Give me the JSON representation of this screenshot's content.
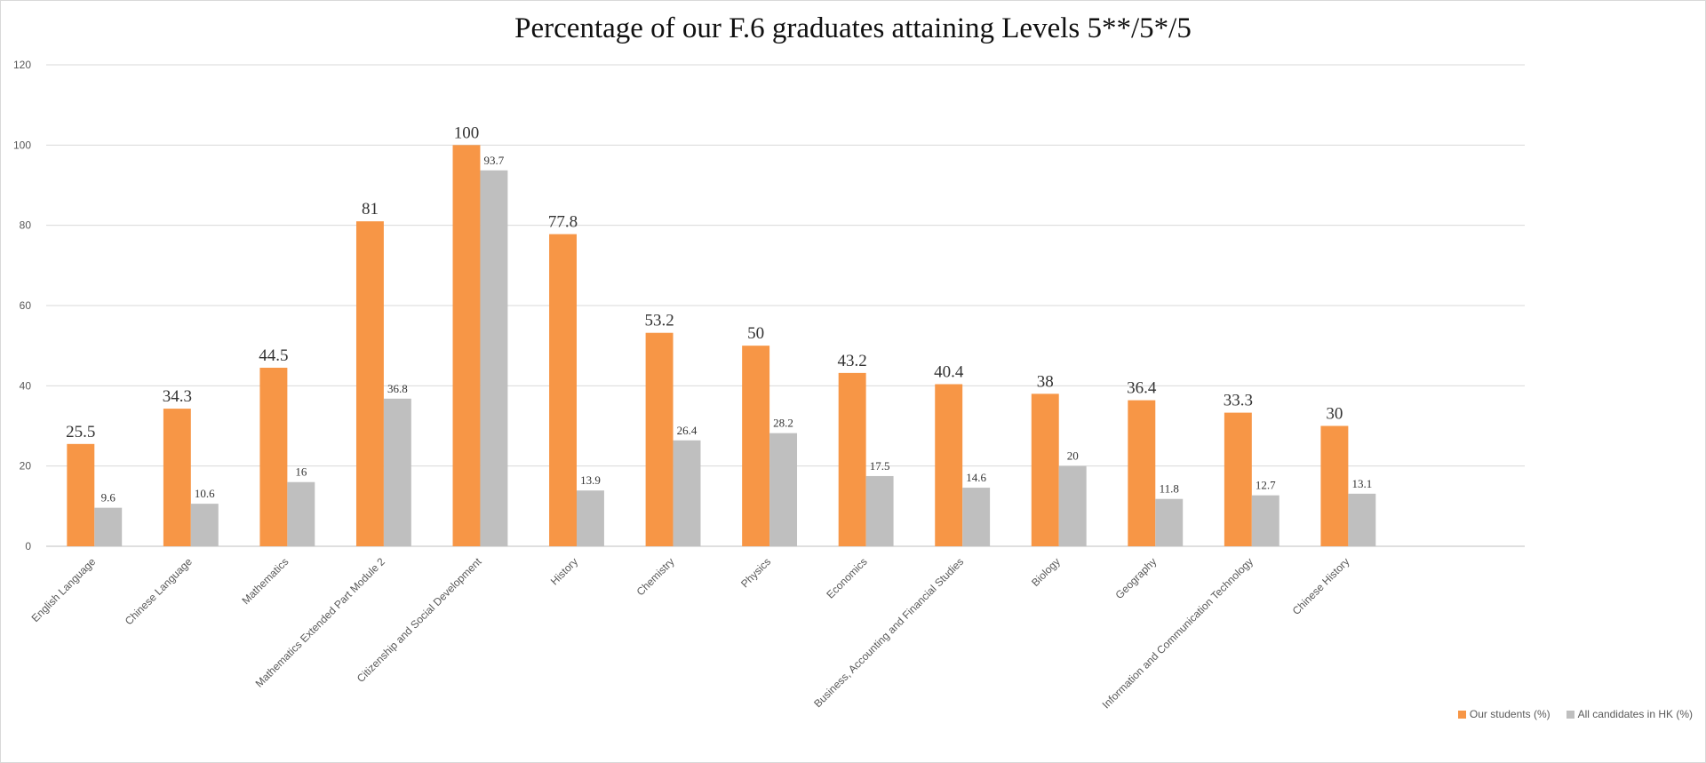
{
  "chart_data": {
    "type": "bar",
    "title": "Percentage of our F.6 graduates attaining Levels 5**/5*/5",
    "xlabel": "",
    "ylabel": "",
    "ylim": [
      0,
      120
    ],
    "yticks": [
      0,
      20,
      40,
      60,
      80,
      100,
      120
    ],
    "grid": true,
    "legend_position": "bottom-right",
    "categories": [
      "English Language",
      "Chinese Language",
      "Mathematics",
      "Mathematics Extended Part Module 2",
      "Citizenship and Social Development",
      "History",
      "Chemistry",
      "Physics",
      "Economics",
      "Business, Accounting and Financial Studies",
      "Biology",
      "Geography",
      "Information and Communication Technology",
      "Chinese History"
    ],
    "series": [
      {
        "name": "Our students (%)",
        "color": "#f79646",
        "values": [
          25.5,
          34.3,
          44.5,
          81,
          100,
          77.8,
          53.2,
          50,
          43.2,
          40.4,
          38,
          36.4,
          33.3,
          30
        ]
      },
      {
        "name": "All candidates in HK (%)",
        "color": "#bfbfbf",
        "values": [
          9.6,
          10.6,
          16,
          36.8,
          93.7,
          13.9,
          26.4,
          28.2,
          17.5,
          14.6,
          20,
          11.8,
          12.7,
          13.1
        ]
      }
    ]
  }
}
